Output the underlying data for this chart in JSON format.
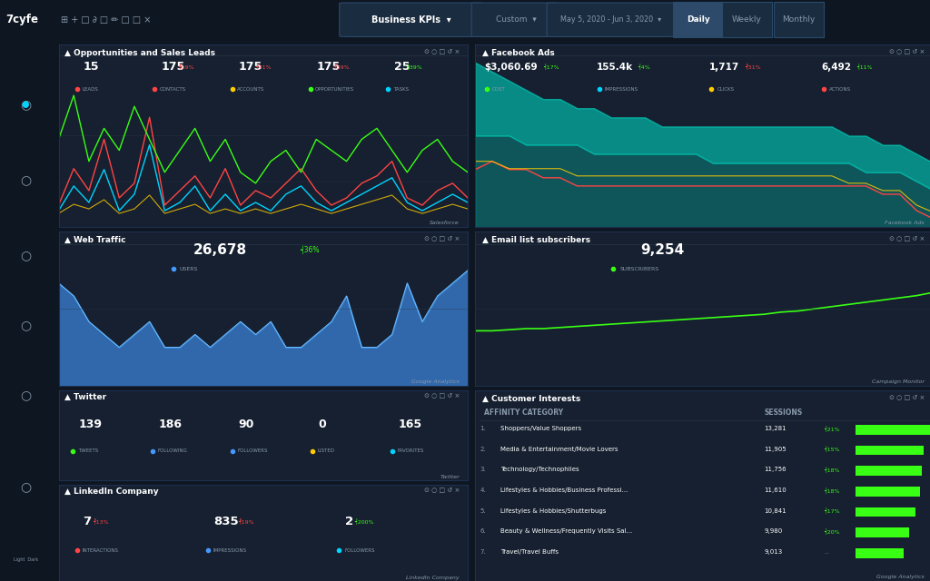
{
  "bg_color": "#0e1621",
  "panel_bg": "#162030",
  "panel_border": "#1e3050",
  "text_color": "#ffffff",
  "subtext_color": "#8899aa",
  "accent_cyan": "#00d4ff",
  "accent_green": "#39ff14",
  "accent_red": "#ff4444",
  "accent_yellow": "#ffcc00",
  "accent_blue": "#4499ff",
  "panels": {
    "opp_sales": {
      "title": "Opportunities and Sales Leads",
      "source": "Salesforce",
      "stats": [
        {
          "val": "15",
          "label": "LEADS",
          "color": "#ff4444"
        },
        {
          "val": "175",
          "label": "CONTACTS",
          "delta": "┩19%",
          "delta_color": "#ff4444",
          "color": "#ff4444"
        },
        {
          "val": "175",
          "label": "ACCOUNTS",
          "delta": "┩41%",
          "delta_color": "#ff4444",
          "color": "#ffcc00"
        },
        {
          "val": "175",
          "label": "OPPORTUNITIES",
          "delta": "┩39%",
          "delta_color": "#ff4444",
          "color": "#39ff14"
        },
        {
          "val": "25",
          "label": "TASKS",
          "delta": "┥39%",
          "delta_color": "#39ff14",
          "color": "#00d4ff"
        }
      ]
    },
    "facebook": {
      "title": "Facebook Ads",
      "source": "Facebook Ads",
      "stats": [
        {
          "val": "$3,060.69",
          "label": "COST",
          "delta": "┥17%",
          "delta_color": "#39ff14",
          "color": "#39ff14"
        },
        {
          "val": "155.4k",
          "label": "IMPRESSIONS",
          "delta": "┥4%",
          "delta_color": "#39ff14",
          "color": "#00d4ff"
        },
        {
          "val": "1,717",
          "label": "CLICKS",
          "delta": "┩31%",
          "delta_color": "#ff4444",
          "color": "#ffcc00"
        },
        {
          "val": "6,492",
          "label": "ACTIONS",
          "delta": "┥11%",
          "delta_color": "#39ff14",
          "color": "#ff4444"
        }
      ]
    },
    "webtraffic": {
      "title": "Web Traffic",
      "source": "Google Analytics",
      "stats": [
        {
          "val": "26,678",
          "label": "USERS",
          "delta": "┥36%",
          "delta_color": "#39ff14",
          "color": "#4499ff"
        }
      ]
    },
    "email": {
      "title": "Email list subscribers",
      "source": "Campaign Monitor",
      "stats": [
        {
          "val": "9,254",
          "label": "SUBSCRIBERS",
          "color": "#39ff14"
        }
      ]
    },
    "twitter": {
      "title": "Twitter",
      "source": "Twitter",
      "stats": [
        {
          "val": "139",
          "label": "TWEETS",
          "color": "#39ff14"
        },
        {
          "val": "186",
          "label": "FOLLOWING",
          "color": "#4499ff"
        },
        {
          "val": "90",
          "label": "FOLLOWERS",
          "color": "#4499ff"
        },
        {
          "val": "0",
          "label": "LISTED",
          "color": "#ffcc00"
        },
        {
          "val": "165",
          "label": "FAVORITES",
          "color": "#00d4ff"
        }
      ]
    },
    "linkedin": {
      "title": "LinkedIn Company",
      "source": "LinkedIn Company",
      "stats": [
        {
          "val": "7",
          "label": "INTERACTIONS",
          "delta": "┩13%",
          "delta_color": "#ff4444",
          "color": "#ff4444"
        },
        {
          "val": "835",
          "label": "IMPRESSIONS",
          "delta": "┩19%",
          "delta_color": "#ff4444",
          "color": "#4499ff"
        },
        {
          "val": "2",
          "label": "FOLLOWERS",
          "delta": "┥200%",
          "delta_color": "#39ff14",
          "color": "#00d4ff"
        }
      ]
    },
    "customer": {
      "title": "Customer Interests",
      "source": "Google Analytics",
      "col1": "AFFINITY CATEGORY",
      "col2": "SESSIONS",
      "rows": [
        {
          "num": "1.",
          "cat": "Shoppers/Value Shoppers",
          "sessions": "13,281",
          "delta": "┥21%",
          "delta_color": "#39ff14",
          "bar": 0.95
        },
        {
          "num": "2.",
          "cat": "Media & Entertainment/Movie Lovers",
          "sessions": "11,905",
          "delta": "┥15%",
          "delta_color": "#39ff14",
          "bar": 0.82
        },
        {
          "num": "3.",
          "cat": "Technology/Technophiles",
          "sessions": "11,756",
          "delta": "┥18%",
          "delta_color": "#39ff14",
          "bar": 0.8
        },
        {
          "num": "4.",
          "cat": "Lifestyles & Hobbies/Business Professi...",
          "sessions": "11,610",
          "delta": "┥18%",
          "delta_color": "#39ff14",
          "bar": 0.78
        },
        {
          "num": "5.",
          "cat": "Lifestyles & Hobbies/Shutterbugs",
          "sessions": "10,841",
          "delta": "┥17%",
          "delta_color": "#39ff14",
          "bar": 0.72
        },
        {
          "num": "6.",
          "cat": "Beauty & Wellness/Frequently Visits Sal...",
          "sessions": "9,980",
          "delta": "┥20%",
          "delta_color": "#39ff14",
          "bar": 0.65
        },
        {
          "num": "7.",
          "cat": "Travel/Travel Buffs",
          "sessions": "9,013",
          "delta": "...",
          "delta_color": "#8899aa",
          "bar": 0.58
        }
      ]
    }
  }
}
